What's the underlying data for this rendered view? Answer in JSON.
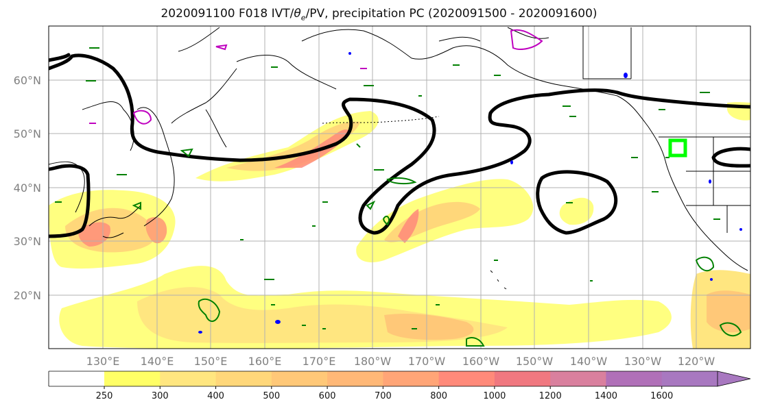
{
  "title": {
    "prefix": "2020091100 F018 IVT/",
    "theta": "θ",
    "theta_sub": "e",
    "suffix": "/PV, precipitation PC (2020091500 - 2020091600)"
  },
  "map": {
    "lat_labels": [
      "60°N",
      "50°N",
      "40°N",
      "30°N",
      "20°N"
    ],
    "lon_labels": [
      "130°E",
      "140°E",
      "150°E",
      "160°E",
      "170°E",
      "180°W",
      "170°W",
      "160°W",
      "150°W",
      "140°W",
      "130°W",
      "120°W"
    ],
    "colors": {
      "theta_e_contour": "#000000",
      "pv_contour": "#008000",
      "pv_contour_alt": "#bf00bf",
      "precip": "#0000ff",
      "target_box": "#00ff00",
      "coastline": "#000000",
      "grid": "#b0b0b0"
    }
  },
  "colorbar": {
    "ticks": [
      "250",
      "300",
      "400",
      "500",
      "600",
      "700",
      "800",
      "1000",
      "1200",
      "1400",
      "1600"
    ],
    "colors": [
      "#ffff66",
      "#ffe680",
      "#ffd77a",
      "#ffc878",
      "#ffb877",
      "#ffa577",
      "#ff8a7a",
      "#f07880",
      "#d9809e",
      "#b070b8",
      "#a878c0"
    ]
  }
}
